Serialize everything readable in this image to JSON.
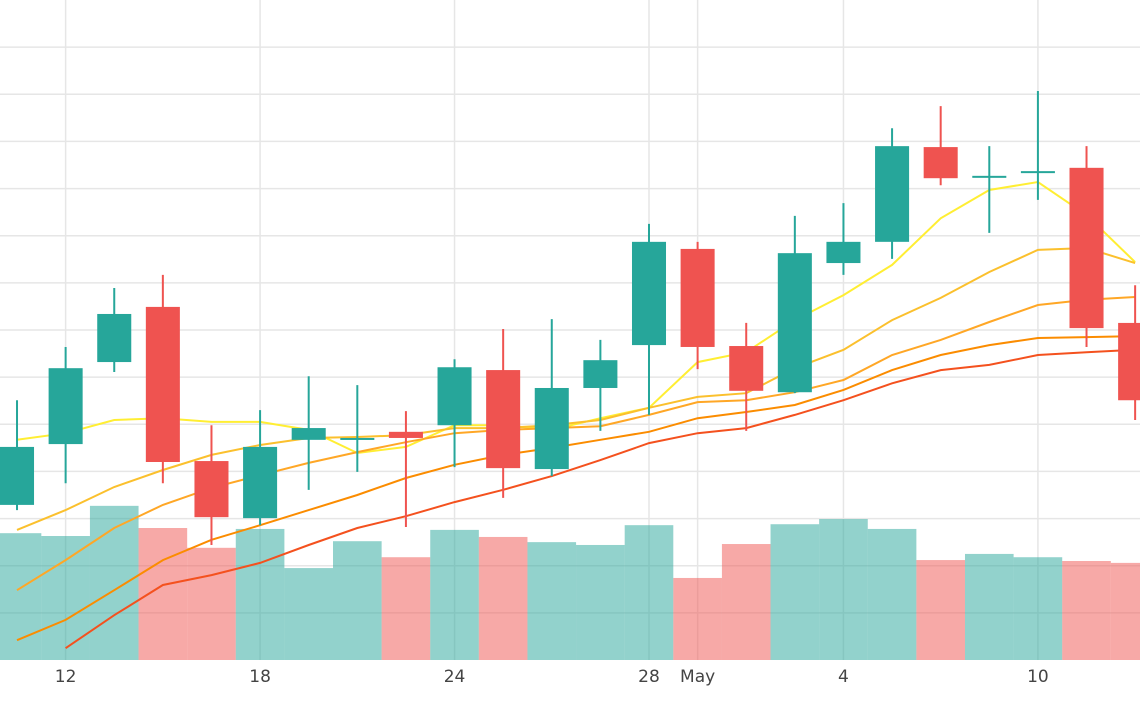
{
  "chart_data": {
    "type": "candlestick",
    "x": [
      0,
      1,
      2,
      3,
      4,
      5,
      6,
      7,
      8,
      9,
      10,
      11,
      12,
      13,
      14,
      15,
      16,
      17,
      18,
      19,
      20,
      21,
      22,
      23
    ],
    "open": [
      3.29,
      4.58,
      6.32,
      7.49,
      4.22,
      3.01,
      4.67,
      4.67,
      4.84,
      4.98,
      6.15,
      4.05,
      5.77,
      6.68,
      8.72,
      6.66,
      5.68,
      8.42,
      8.87,
      10.88,
      10.24,
      10.33,
      10.44,
      7.15
    ],
    "high": [
      5.51,
      6.64,
      7.89,
      8.17,
      4.98,
      5.3,
      6.02,
      5.83,
      5.28,
      6.38,
      7.02,
      7.23,
      6.79,
      9.25,
      8.87,
      7.15,
      9.42,
      9.69,
      11.28,
      11.75,
      10.9,
      12.07,
      10.9,
      7.95
    ],
    "low": [
      3.18,
      3.75,
      6.11,
      3.75,
      2.44,
      2.86,
      3.61,
      3.99,
      2.82,
      4.09,
      3.44,
      3.9,
      4.86,
      5.2,
      6.17,
      4.86,
      5.66,
      8.17,
      8.51,
      10.07,
      9.06,
      9.76,
      6.64,
      5.09
    ],
    "close": [
      4.52,
      6.19,
      7.34,
      4.2,
      3.03,
      4.52,
      4.92,
      4.71,
      4.71,
      6.21,
      4.07,
      5.77,
      6.36,
      8.87,
      6.64,
      5.71,
      8.63,
      8.87,
      10.9,
      10.22,
      10.27,
      10.37,
      7.04,
      5.51
    ],
    "volume": [
      2.69,
      2.63,
      3.27,
      2.8,
      2.38,
      2.78,
      1.95,
      2.52,
      2.18,
      2.76,
      2.61,
      2.5,
      2.44,
      2.86,
      1.74,
      2.46,
      2.88,
      2.99,
      2.78,
      2.12,
      2.25,
      2.18,
      2.1,
      2.06
    ],
    "up_color": "#26a69a",
    "down_color": "#ef5350",
    "series": [
      {
        "color": "#ffee33",
        "values": [
          4.67,
          4.81,
          5.09,
          5.13,
          5.05,
          5.05,
          4.88,
          4.39,
          4.52,
          4.98,
          4.98,
          4.88,
          5.13,
          5.35,
          6.32,
          6.53,
          7.21,
          7.74,
          8.38,
          9.37,
          9.97,
          10.14,
          9.44,
          8.44
        ]
      },
      {
        "color": "#fbc02d",
        "values": [
          2.76,
          3.18,
          3.67,
          4.03,
          4.35,
          4.56,
          4.71,
          4.73,
          4.77,
          4.92,
          4.92,
          4.98,
          5.09,
          5.35,
          5.58,
          5.66,
          6.19,
          6.58,
          7.21,
          7.68,
          8.23,
          8.7,
          8.74,
          8.42
        ]
      },
      {
        "color": "#ffa726",
        "values": [
          1.48,
          2.12,
          2.8,
          3.29,
          3.65,
          3.92,
          4.18,
          4.41,
          4.62,
          4.81,
          4.88,
          4.92,
          4.96,
          5.2,
          5.47,
          5.51,
          5.68,
          5.94,
          6.47,
          6.79,
          7.17,
          7.53,
          7.64,
          7.7
        ]
      },
      {
        "color": "#fb8c00",
        "values": [
          0.42,
          0.85,
          1.48,
          2.12,
          2.55,
          2.86,
          3.18,
          3.5,
          3.86,
          4.14,
          4.35,
          4.5,
          4.67,
          4.84,
          5.13,
          5.26,
          5.41,
          5.73,
          6.15,
          6.47,
          6.68,
          6.83,
          6.85,
          6.87
        ]
      },
      {
        "color": "#f4511e",
        "values": [
          null,
          0.25,
          0.95,
          1.59,
          1.8,
          2.06,
          2.44,
          2.8,
          3.05,
          3.35,
          3.61,
          3.9,
          4.24,
          4.6,
          4.81,
          4.92,
          5.2,
          5.51,
          5.87,
          6.15,
          6.26,
          6.47,
          6.53,
          6.58
        ]
      }
    ],
    "xlim": [
      -0.35,
      23.1
    ],
    "ylim": [
      0,
      14
    ],
    "xticks": [
      {
        "value": 1,
        "label": "12"
      },
      {
        "value": 5,
        "label": "18"
      },
      {
        "value": 9,
        "label": "24"
      },
      {
        "value": 13,
        "label": "28"
      },
      {
        "value": 14,
        "label": "May"
      },
      {
        "value": 17,
        "label": "4"
      },
      {
        "value": 21,
        "label": "10"
      }
    ],
    "yticks": [
      1,
      2,
      3,
      4,
      5,
      6,
      7,
      8,
      9,
      10,
      11,
      12,
      13
    ],
    "grid": true
  }
}
